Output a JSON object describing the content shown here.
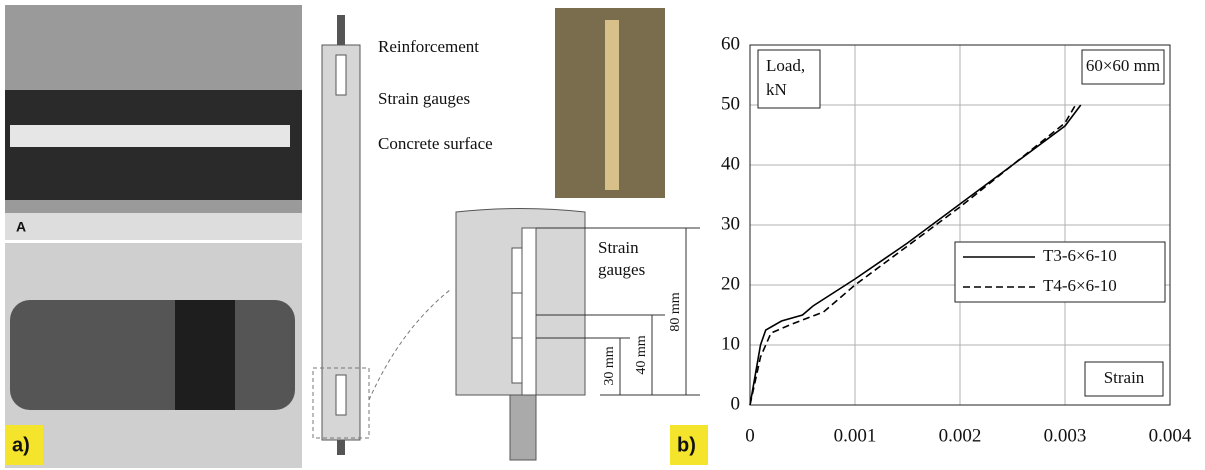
{
  "panels": {
    "photo_label": "A",
    "panel_a": "a)",
    "panel_b": "b)"
  },
  "diagram": {
    "reinforcement": "Reinforcement",
    "strain_gauges": "Strain gauges",
    "concrete_surface": "Concrete surface",
    "detail_gauges": "Strain\ngauges",
    "dim_80": "80 mm",
    "dim_40": "40 mm",
    "dim_30": "30 mm"
  },
  "chart_data": {
    "type": "line",
    "y_label": "Load,\nkN",
    "x_label": "Strain",
    "annotation": "60×60 mm",
    "xlim": [
      0,
      0.004
    ],
    "xticks": [
      0,
      0.001,
      0.002,
      0.003,
      0.004
    ],
    "ylim": [
      0,
      60
    ],
    "yticks": [
      0,
      10,
      20,
      30,
      40,
      50,
      60
    ],
    "grid": true,
    "legend": "right",
    "series": [
      {
        "name": "T3-6×6-10",
        "color": "#000000",
        "dash": "solid",
        "x": [
          0,
          5e-05,
          0.0001,
          0.00015,
          0.0003,
          0.0005,
          0.0006,
          0.001,
          0.0015,
          0.002,
          0.0025,
          0.003,
          0.00315
        ],
        "values": [
          0,
          5,
          10,
          12.5,
          14,
          15,
          16.5,
          21,
          27,
          33.5,
          40,
          46.5,
          50
        ]
      },
      {
        "name": "T4-6×6-10",
        "color": "#000000",
        "dash": "dashed",
        "x": [
          0,
          0.0001,
          0.00015,
          0.0002,
          0.0004,
          0.0007,
          0.001,
          0.0015,
          0.002,
          0.0025,
          0.003,
          0.0031
        ],
        "values": [
          0,
          8,
          10,
          12,
          13.5,
          15.5,
          20,
          26.5,
          33,
          40,
          47,
          50
        ]
      }
    ]
  }
}
